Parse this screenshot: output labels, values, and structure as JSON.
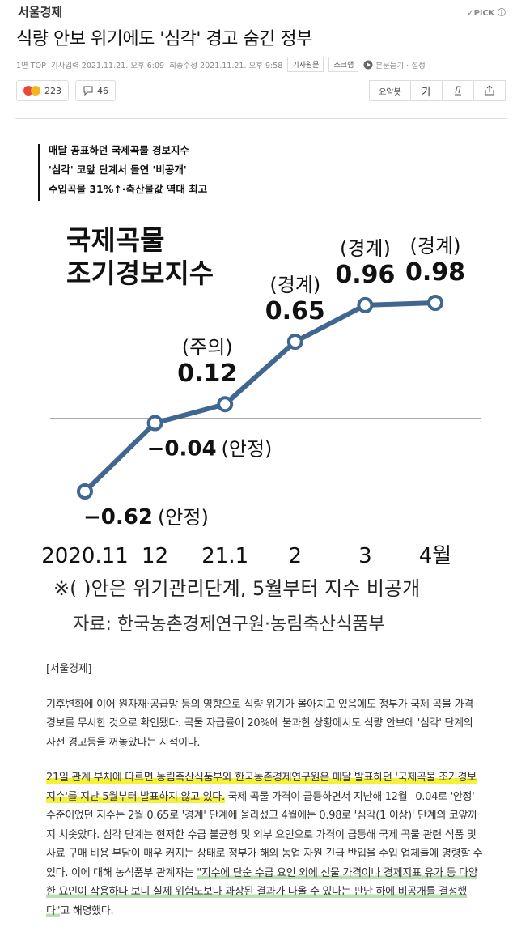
{
  "header": {
    "brand": "서울경제",
    "pick": "PiCK"
  },
  "article": {
    "title": "식량 안보 위기에도 '심각' 경고 숨긴 정부",
    "section": "1면 TOP",
    "published": "기사입력 2021.11.21. 오후 6:09",
    "modified": "최종수정 2021.11.21. 오후 9:58",
    "buttons": [
      "기사원문",
      "스크랩"
    ],
    "listen": "본문듣기 · 설정",
    "reactions": [
      223,
      46
    ],
    "tools": [
      "요약봇",
      "가"
    ]
  },
  "headline_box": [
    "매달 공표하던 국제곡물 경보지수",
    "'심각' 코앞 단계서 돌연 '비공개'",
    "수입곡물 31%↑·축산물값 역대 최고"
  ],
  "chart_data": {
    "type": "line",
    "title": [
      "국제곡물",
      "조기경보지수"
    ],
    "categories": [
      "2020.11",
      "12",
      "21.1",
      "2",
      "3",
      "4월"
    ],
    "values": [
      -0.62,
      -0.04,
      0.12,
      0.65,
      0.96,
      0.98
    ],
    "value_labels": [
      "−0.62",
      "−0.04",
      "0.12",
      "0.65",
      "0.96",
      "0.98"
    ],
    "stage_labels": [
      "(안정)",
      "(안정)",
      "(주의)",
      "(경계)",
      "(경계)",
      "(경계)"
    ],
    "color": "#3f6791",
    "note": "※(  )안은 위기관리단계, 5월부터 지수 비공개",
    "source": "자료: 한국농촌경제연구원·농림축산식품부"
  },
  "body": {
    "byline": "[서울경제]",
    "paragraphs": [
      [
        {
          "text": "기후변화에 이어 원자재·공급망 등의 영향으로 식량 위기가 몰아치고 있음에도 정부가 국제 곡물 가격 경보를 무시한 것으로 확인됐다. 곡물 자급률이 20%에 불과한 상황에서도 식량 안보에 '심각' 단계의 사전 경고등을 꺼놓았다는 지적이다.",
          "style": "plain"
        }
      ],
      [
        {
          "text": "21일 관계 부처에 따르면 농림축산식품부와 한국농촌경제연구원은 매달 발표하던 '국제곡물 조기경보지수'를 지난 5월부터 발표하지 않고 있다.",
          "style": "highlight"
        },
        {
          "text": " 국제 곡물 가격이 급등하면서 지난해 12월 –0.04로 '안정' 수준이었던 지수는 2월 0.65로 '경계' 단계에 올라섰고 4월에는 0.98로 '심각(1 이상)' 단계의 코앞까지 치솟았다. 심각 단계는 현저한 수급 불균형 및 외부 요인으로 가격이 급등해 국제 곡물 관련 식품 및 사료 구매 비용 부담이 매우 커지는 상태로 정부가 해외 농업 자원 긴급 반입을 수입 업체들에 명령할 수 있다. 이에 대해 농식품부 관계자는 ",
          "style": "plain"
        },
        {
          "text": "\"지수에 단순 수급 요인 외에 선물 가격이나 경제지표 유가 등 다양한 요인이 작용하다 보니 실제 위험도보다 과장된 결과가 나올 수 있다는 판단 하에 비공개를 결정했다\"",
          "style": "underline"
        },
        {
          "text": "고 해명했다.",
          "style": "plain"
        }
      ]
    ]
  }
}
